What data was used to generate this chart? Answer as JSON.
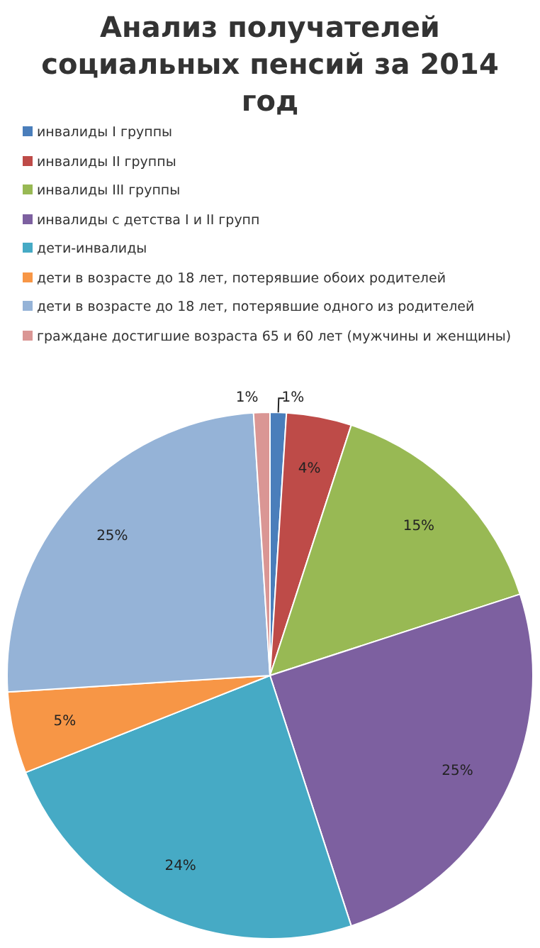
{
  "chart_data": {
    "type": "pie",
    "title": "Анализ получателей социальных пенсий за 2014 год",
    "categories": [
      "инвалиды I группы",
      "инвалиды II группы",
      "инвалиды III группы",
      "инвалиды с детства I и II групп",
      "дети-инвалиды",
      "дети в возрасте до 18 лет, потерявшие обоих родителей",
      "дети в возрасте до 18 лет, потерявшие одного из родителей",
      "граждане достигшие возраста 65 и 60 лет (мужчины и женщины)"
    ],
    "values": [
      1,
      4,
      15,
      25,
      24,
      5,
      25,
      1
    ],
    "colors": [
      "#4a7ebb",
      "#be4b48",
      "#98b954",
      "#7d60a0",
      "#46aac5",
      "#f79646",
      "#95b3d7",
      "#da9694"
    ],
    "value_labels": [
      "1%",
      "4%",
      "15%",
      "25%",
      "24%",
      "5%",
      "25%",
      "1%"
    ],
    "legend": "top left"
  }
}
